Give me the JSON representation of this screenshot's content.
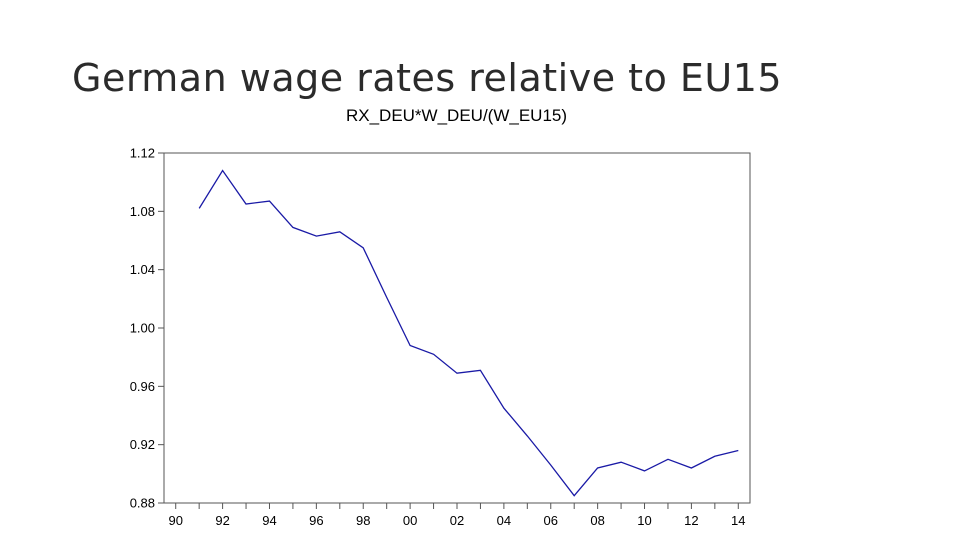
{
  "slide": {
    "title": "German wage rates relative to EU15"
  },
  "chart_data": {
    "type": "line",
    "title": "RX_DEU*W_DEU/(W_EU15)",
    "xlabel": "",
    "ylabel": "",
    "x": [
      1991,
      1992,
      1993,
      1994,
      1995,
      1996,
      1997,
      1998,
      1999,
      2000,
      2001,
      2002,
      2003,
      2004,
      2005,
      2006,
      2007,
      2008,
      2009,
      2010,
      2011,
      2012,
      2013,
      2014
    ],
    "series": [
      {
        "values": [
          1.082,
          1.108,
          1.085,
          1.087,
          1.069,
          1.063,
          1.066,
          1.055,
          1.021,
          0.988,
          0.982,
          0.969,
          0.971,
          0.945,
          0.926,
          0.906,
          0.885,
          0.904,
          0.908,
          0.902,
          0.91,
          0.904,
          0.912,
          0.916
        ],
        "color": "#1a1aa6"
      }
    ],
    "xlim": [
      1989.5,
      2014.5
    ],
    "ylim": [
      0.88,
      1.12
    ],
    "x_ticks": [
      1990,
      1992,
      1994,
      1996,
      1998,
      2000,
      2002,
      2004,
      2006,
      2008,
      2010,
      2012,
      2014
    ],
    "x_tick_labels": [
      "90",
      "92",
      "94",
      "96",
      "98",
      "00",
      "02",
      "04",
      "06",
      "08",
      "10",
      "12",
      "14"
    ],
    "y_ticks": [
      0.88,
      0.92,
      0.96,
      1.0,
      1.04,
      1.08,
      1.12
    ],
    "y_tick_labels": [
      "0.88",
      "0.92",
      "0.96",
      "1.00",
      "1.04",
      "1.08",
      "1.12"
    ],
    "grid": false,
    "legend": "none"
  }
}
